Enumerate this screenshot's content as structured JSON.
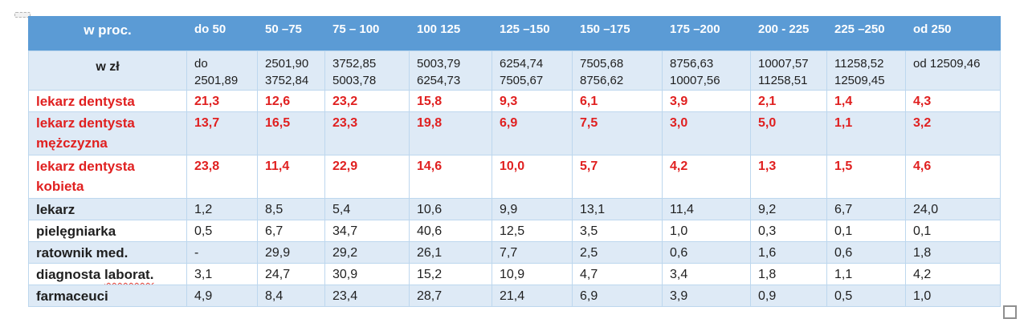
{
  "table": {
    "unit_row_label": "w proc.",
    "col_headers": [
      "do 50",
      "50 –75",
      "75 – 100",
      "100 125",
      "125 –150",
      "150 –175",
      "175 –200",
      "200 - 225",
      "225 –250",
      "od 250"
    ],
    "subheader": {
      "label": "w zł",
      "cells": [
        [
          "do",
          "2501,89"
        ],
        [
          "2501,90",
          "3752,84"
        ],
        [
          "3752,85",
          "5003,78"
        ],
        [
          "5003,79",
          "6254,73"
        ],
        [
          "6254,74",
          "7505,67"
        ],
        [
          "7505,68",
          "8756,62"
        ],
        [
          "8756,63",
          "10007,56"
        ],
        [
          "10007,57",
          "11258,51"
        ],
        [
          "11258,52",
          "12509,45"
        ],
        [
          "od 12509,46"
        ]
      ]
    },
    "rows": [
      {
        "label_lines": [
          "lekarz dentysta"
        ],
        "style": "red",
        "values": [
          "21,3",
          "12,6",
          "23,2",
          "15,8",
          "9,3",
          "6,1",
          "3,9",
          "2,1",
          "1,4",
          "4,3"
        ]
      },
      {
        "label_lines": [
          "lekarz dentysta",
          "mężczyzna"
        ],
        "style": "red",
        "values": [
          "13,7",
          "16,5",
          "23,3",
          "19,8",
          "6,9",
          "7,5",
          "3,0",
          "5,0",
          "1,1",
          "3,2"
        ]
      },
      {
        "label_lines": [
          "lekarz dentysta",
          "kobieta"
        ],
        "style": "red",
        "values": [
          "23,8",
          "11,4",
          "22,9",
          "14,6",
          "10,0",
          "5,7",
          "4,2",
          "1,3",
          "1,5",
          "4,6"
        ]
      },
      {
        "label_lines": [
          "lekarz"
        ],
        "style": "black",
        "values": [
          "1,2",
          "8,5",
          "5,4",
          "10,6",
          "9,9",
          "13,1",
          "11,4",
          "9,2",
          "6,7",
          "24,0"
        ]
      },
      {
        "label_lines": [
          "pielęgniarka"
        ],
        "style": "black",
        "values": [
          "0,5",
          "6,7",
          "34,7",
          "40,6",
          "12,5",
          "3,5",
          "1,0",
          "0,3",
          "0,1",
          "0,1"
        ]
      },
      {
        "label_lines": [
          "ratownik med."
        ],
        "style": "black",
        "values": [
          "-",
          "29,9",
          "29,2",
          "26,1",
          "7,7",
          "2,5",
          "0,6",
          "1,6",
          "0,6",
          "1,8"
        ]
      },
      {
        "label_lines": [
          "diagnosta laborat."
        ],
        "style": "black",
        "squiggle": "laborat.",
        "values": [
          "3,1",
          "24,7",
          "30,9",
          "15,2",
          "10,9",
          "4,7",
          "3,4",
          "1,8",
          "1,1",
          "4,2"
        ]
      },
      {
        "label_lines": [
          "farmaceuci"
        ],
        "style": "black",
        "values": [
          "4,9",
          "8,4",
          "23,4",
          "28,7",
          "21,4",
          "6,9",
          "3,9",
          "0,9",
          "0,5",
          "1,0"
        ]
      }
    ]
  },
  "colors": {
    "header_bg": "#5B9BD5",
    "band_bg": "#DEEAF6",
    "border": "#BDD7EE",
    "red": "#E02020",
    "text": "#1F1F1F"
  },
  "icons": {
    "move_handle": "table-move-handle",
    "resize_handle": "table-resize-handle"
  }
}
